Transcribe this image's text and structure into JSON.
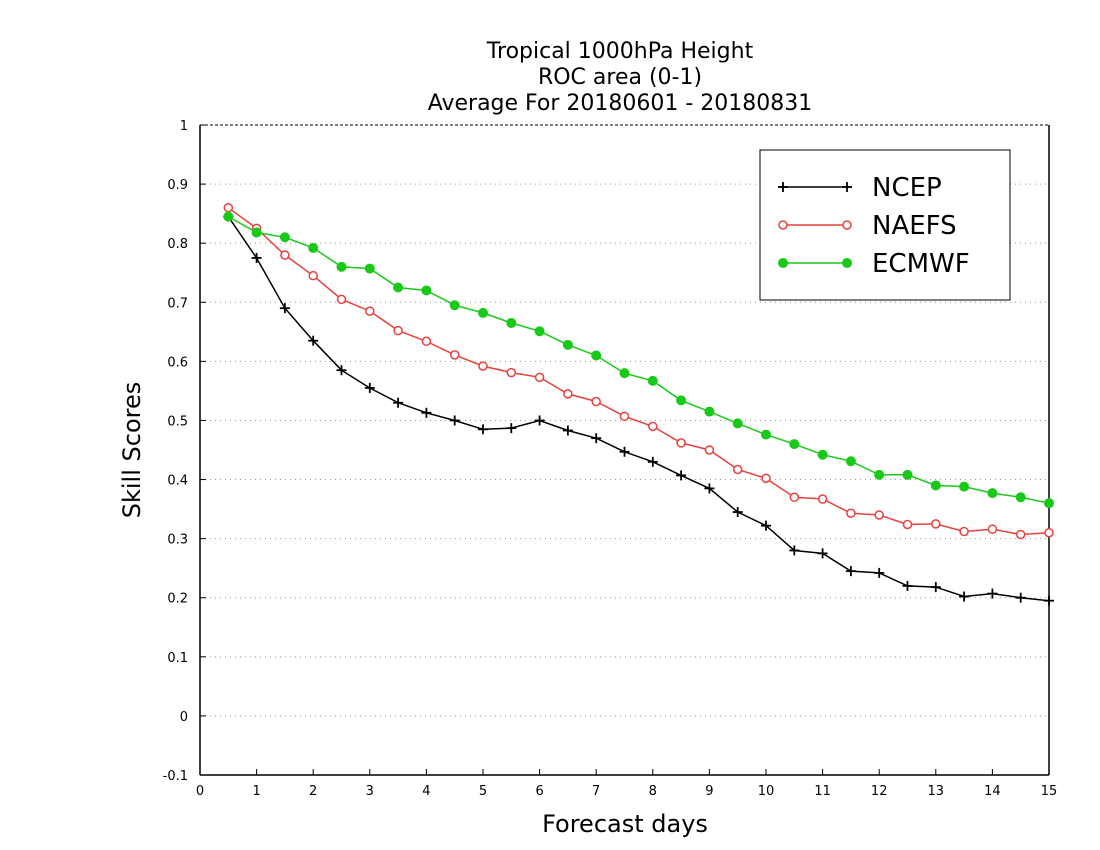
{
  "chart_data": {
    "type": "line",
    "title": [
      "Tropical 1000hPa Height",
      "ROC area (0-1)",
      "Average For 20180601 - 20180831"
    ],
    "xlabel": "Forecast days",
    "ylabel": "Skill Scores",
    "xlim": [
      0,
      15
    ],
    "ylim": [
      -0.1,
      1
    ],
    "x_ticks": [
      0,
      1,
      2,
      3,
      4,
      5,
      6,
      7,
      8,
      9,
      10,
      11,
      12,
      13,
      14,
      15
    ],
    "x_tick_labels": [
      "0",
      "1",
      "2",
      "3",
      "4",
      "5",
      "6",
      "7",
      "8",
      "9",
      "10",
      "11",
      "12",
      "13",
      "14",
      "15"
    ],
    "y_ticks": [
      -0.1,
      0,
      0.1,
      0.2,
      0.3,
      0.4,
      0.5,
      0.6,
      0.7,
      0.8,
      0.9,
      1
    ],
    "y_tick_labels": [
      "-0.1",
      "0",
      "0.1",
      "0.2",
      "0.3",
      "0.4",
      "0.5",
      "0.6",
      "0.7",
      "0.8",
      "0.9",
      "1"
    ],
    "grid": "horizontal dotted",
    "legend_position": "top-right",
    "x": [
      0.5,
      1,
      1.5,
      2,
      2.5,
      3,
      3.5,
      4,
      4.5,
      5,
      5.5,
      6,
      6.5,
      7,
      7.5,
      8,
      8.5,
      9,
      9.5,
      10,
      10.5,
      11,
      11.5,
      12,
      12.5,
      13,
      13.5,
      14,
      14.5,
      15
    ],
    "series": [
      {
        "name": "NCEP",
        "color": "#000000",
        "marker": "plus",
        "values": [
          0.845,
          0.775,
          0.69,
          0.635,
          0.585,
          0.555,
          0.53,
          0.513,
          0.5,
          0.485,
          0.487,
          0.5,
          0.483,
          0.47,
          0.447,
          0.43,
          0.407,
          0.385,
          0.345,
          0.322,
          0.28,
          0.275,
          0.245,
          0.242,
          0.22,
          0.218,
          0.202,
          0.207,
          0.2,
          0.195
        ]
      },
      {
        "name": "NAEFS",
        "color": "#e8413c",
        "marker": "open-circle",
        "values": [
          0.86,
          0.825,
          0.78,
          0.745,
          0.705,
          0.685,
          0.652,
          0.634,
          0.611,
          0.592,
          0.581,
          0.573,
          0.545,
          0.532,
          0.507,
          0.49,
          0.462,
          0.45,
          0.417,
          0.402,
          0.37,
          0.367,
          0.343,
          0.34,
          0.324,
          0.325,
          0.312,
          0.316,
          0.307,
          0.31
        ]
      },
      {
        "name": "ECMWF",
        "color": "#19c919",
        "marker": "filled-circle",
        "values": [
          0.845,
          0.818,
          0.81,
          0.792,
          0.76,
          0.757,
          0.725,
          0.72,
          0.695,
          0.682,
          0.665,
          0.651,
          0.628,
          0.61,
          0.58,
          0.567,
          0.534,
          0.515,
          0.495,
          0.476,
          0.46,
          0.442,
          0.431,
          0.408,
          0.408,
          0.39,
          0.388,
          0.377,
          0.37,
          0.36
        ]
      }
    ]
  }
}
